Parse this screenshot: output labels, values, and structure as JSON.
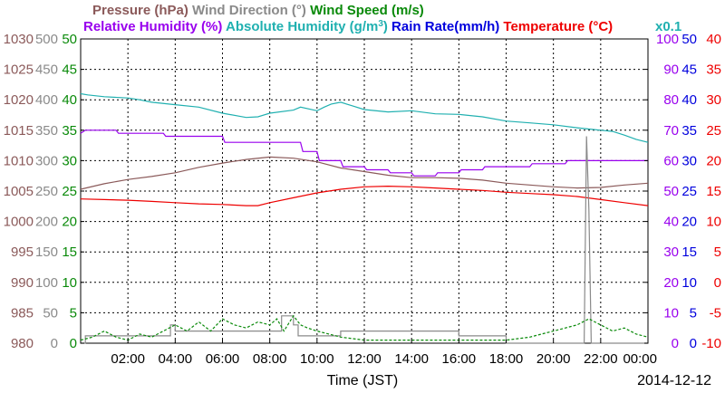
{
  "chart_data": {
    "type": "line",
    "legend_row1": [
      {
        "label": "Pressure (hPa)",
        "color": "#8b5a5a"
      },
      {
        "label": "Wind Direction (°)",
        "color": "#8a8a8a"
      },
      {
        "label": "Wind Speed (m/s)",
        "color": "#0a8a0a"
      }
    ],
    "legend_row2": [
      {
        "label": "Relative Humidity (%)",
        "color": "#9900ee"
      },
      {
        "label": "Absolute Humidity (g/m",
        "sup": "3",
        "tail": ")",
        "color": "#20b0b0"
      },
      {
        "label": "Rain Rate(mm/h)",
        "color": "#0000dd"
      },
      {
        "label": "Temperature (°C)",
        "color": "#ee0000"
      }
    ],
    "abs_humidity_scale_note": "x0.1",
    "xlabel": "Time (JST)",
    "date": "2014-12-12",
    "x_ticks": [
      "02:00",
      "04:00",
      "06:00",
      "08:00",
      "10:00",
      "12:00",
      "14:00",
      "16:00",
      "18:00",
      "20:00",
      "22:00",
      "00:00"
    ],
    "x_range_hours": [
      0,
      24
    ],
    "axes": {
      "pressure": {
        "color": "#8b5a5a",
        "range": [
          980,
          1030
        ],
        "ticks": [
          "1030",
          "1025",
          "1020",
          "1015",
          "1010",
          "1005",
          "1000",
          "995",
          "990",
          "985",
          "980"
        ]
      },
      "wind_direction": {
        "color": "#8a8a8a",
        "range": [
          0,
          500
        ],
        "ticks": [
          "500",
          "450",
          "400",
          "350",
          "300",
          "250",
          "200",
          "150",
          "100",
          "50",
          "0"
        ]
      },
      "wind_speed": {
        "color": "#0a8a0a",
        "range": [
          0,
          50
        ],
        "ticks": [
          "50",
          "45",
          "40",
          "35",
          "30",
          "25",
          "20",
          "15",
          "10",
          "5",
          "0"
        ]
      },
      "relative_humidity": {
        "color": "#9900ee",
        "range": [
          0,
          100
        ],
        "ticks": [
          "100",
          "90",
          "80",
          "70",
          "60",
          "50",
          "40",
          "30",
          "20",
          "10",
          "0"
        ]
      },
      "rain_rate": {
        "color": "#0000dd",
        "range": [
          0,
          50
        ],
        "ticks": [
          "50",
          "45",
          "40",
          "35",
          "30",
          "25",
          "20",
          "15",
          "10",
          "5",
          "0"
        ]
      },
      "temperature": {
        "color": "#ee0000",
        "range": [
          -10,
          40
        ],
        "ticks": [
          "40",
          "35",
          "30",
          "25",
          "20",
          "15",
          "10",
          "5",
          "0",
          "-5",
          "-10"
        ]
      }
    },
    "series": [
      {
        "name": "Absolute Humidity",
        "color": "#20b0b0",
        "x": [
          0,
          0.3,
          1,
          2,
          2.5,
          3,
          4,
          5,
          6,
          7,
          7.5,
          8,
          9,
          9.3,
          10,
          10.3,
          10.6,
          11,
          11.5,
          12,
          13,
          14,
          15,
          16,
          17,
          18,
          19,
          20,
          21,
          21.5,
          22,
          22.5,
          23,
          23.5,
          24
        ],
        "y": [
          41,
          40.8,
          40.5,
          40.3,
          40,
          39.6,
          39.2,
          38.8,
          37.8,
          37.1,
          37.2,
          37.8,
          38.3,
          38.8,
          38.2,
          38.8,
          39.3,
          39.6,
          39,
          38.4,
          38,
          38.2,
          37.7,
          37.6,
          37.2,
          36.5,
          36.2,
          35.9,
          35.4,
          35.2,
          35,
          34.8,
          34.2,
          33.5,
          33
        ]
      },
      {
        "name": "Relative Humidity",
        "color": "#9900ee",
        "x": [
          0,
          0.2,
          1.5,
          1.6,
          3.5,
          3.6,
          6,
          6.1,
          9.3,
          9.4,
          10,
          10.1,
          11,
          11.1,
          12,
          12.1,
          13,
          13.1,
          14,
          14.1,
          15,
          15.1,
          16,
          16.1,
          17,
          17.1,
          19,
          19.1,
          20.5,
          20.6,
          24
        ],
        "y": [
          69,
          70,
          70,
          69,
          69,
          68,
          68,
          66,
          66,
          63,
          63,
          60,
          60,
          58,
          58,
          57,
          57,
          56,
          56,
          55,
          55,
          56,
          56,
          57,
          57,
          58,
          58,
          59,
          59,
          60,
          60
        ]
      },
      {
        "name": "Pressure",
        "color": "#8b5a5a",
        "x": [
          0,
          1,
          2,
          3,
          4,
          5,
          6,
          7,
          8,
          9,
          10,
          11,
          12,
          13,
          14,
          15,
          16,
          17,
          18,
          19,
          20,
          21,
          22,
          23,
          24
        ],
        "y": [
          1005.3,
          1006.2,
          1006.9,
          1007.4,
          1008,
          1008.9,
          1009.6,
          1010.2,
          1010.6,
          1010.4,
          1009.8,
          1008.8,
          1008.2,
          1007.6,
          1007.2,
          1007.2,
          1007.1,
          1006.8,
          1006.3,
          1006,
          1005.7,
          1005.5,
          1005.6,
          1006,
          1006.3
        ]
      },
      {
        "name": "Temperature",
        "color": "#ee0000",
        "x": [
          0,
          1,
          2,
          3,
          4,
          5,
          6,
          7,
          7.5,
          8,
          9,
          10,
          11,
          12,
          13,
          14,
          15,
          16,
          17,
          18,
          19,
          20,
          21,
          22,
          23,
          24
        ],
        "y": [
          13.7,
          13.6,
          13.5,
          13.3,
          13.1,
          12.9,
          12.8,
          12.6,
          12.6,
          13.1,
          13.9,
          14.7,
          15.3,
          15.7,
          15.8,
          15.7,
          15.5,
          15.3,
          15.1,
          14.8,
          14.6,
          14.4,
          14.1,
          13.6,
          13.1,
          12.6
        ]
      },
      {
        "name": "Wind Direction",
        "color": "#8a8a8a",
        "x": [
          0,
          0.2,
          0.2,
          3.8,
          3.8,
          4,
          4,
          8.5,
          8.5,
          9,
          9,
          9.2,
          9.2,
          11,
          11,
          12,
          12,
          16,
          16,
          18,
          18,
          21.3,
          21.4,
          21.5,
          21.6,
          21.7,
          24
        ],
        "y": [
          0,
          0,
          12,
          12,
          30,
          30,
          20,
          20,
          45,
          45,
          30,
          30,
          12,
          12,
          20,
          20,
          20,
          20,
          12,
          12,
          0,
          0,
          340,
          220,
          0,
          0,
          0
        ]
      },
      {
        "name": "Wind Speed",
        "color": "#0a8a0a",
        "x": [
          0,
          0.5,
          1,
          1.5,
          2,
          2.5,
          3,
          3.5,
          4,
          4.5,
          5,
          5.5,
          6,
          6.5,
          7,
          7.5,
          8,
          8.3,
          8.6,
          9,
          9.3,
          9.6,
          10,
          10.5,
          11,
          12,
          13,
          14,
          15,
          16,
          17,
          18,
          19,
          19.5,
          20,
          20.5,
          21,
          21.5,
          22,
          22.5,
          23,
          23.5,
          24
        ],
        "y": [
          0.5,
          1,
          2,
          1,
          0.5,
          1.5,
          1,
          2,
          3,
          2,
          3.5,
          2,
          4,
          3,
          2.5,
          3.5,
          3,
          4,
          2,
          4.5,
          3,
          2.5,
          2,
          1.5,
          1,
          0.5,
          0.5,
          0.5,
          0.5,
          0.5,
          0.5,
          0.5,
          1,
          1.5,
          2,
          2.5,
          3,
          4,
          3,
          2,
          2.5,
          1.5,
          1
        ]
      }
    ]
  }
}
